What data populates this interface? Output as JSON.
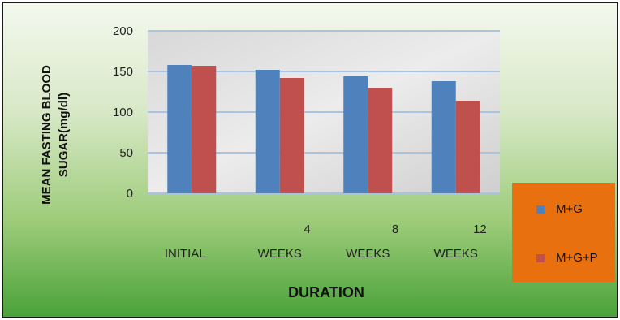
{
  "chart_data": {
    "type": "bar",
    "categories": [
      {
        "line1": "",
        "line2": "INITIAL"
      },
      {
        "line1": "4",
        "line2": "WEEKS"
      },
      {
        "line1": "8",
        "line2": "WEEKS"
      },
      {
        "line1": "12",
        "line2": "WEEKS"
      }
    ],
    "series": [
      {
        "name": "M+G",
        "values": [
          158,
          152,
          144,
          138
        ],
        "color": "#4f81bd"
      },
      {
        "name": "M+G+P",
        "values": [
          157,
          142,
          130,
          114
        ],
        "color": "#c0504d"
      }
    ],
    "ylim": [
      0,
      200
    ],
    "yticks": [
      "0",
      "50",
      "100",
      "150",
      "200"
    ],
    "ylabel_line1": "MEAN FASTING BLOOD",
    "ylabel_line2": "SUGAR(mg/dl)",
    "xlabel": "DURATION",
    "grid": true,
    "legend_position": "right",
    "legend_background": "#e9700e"
  }
}
